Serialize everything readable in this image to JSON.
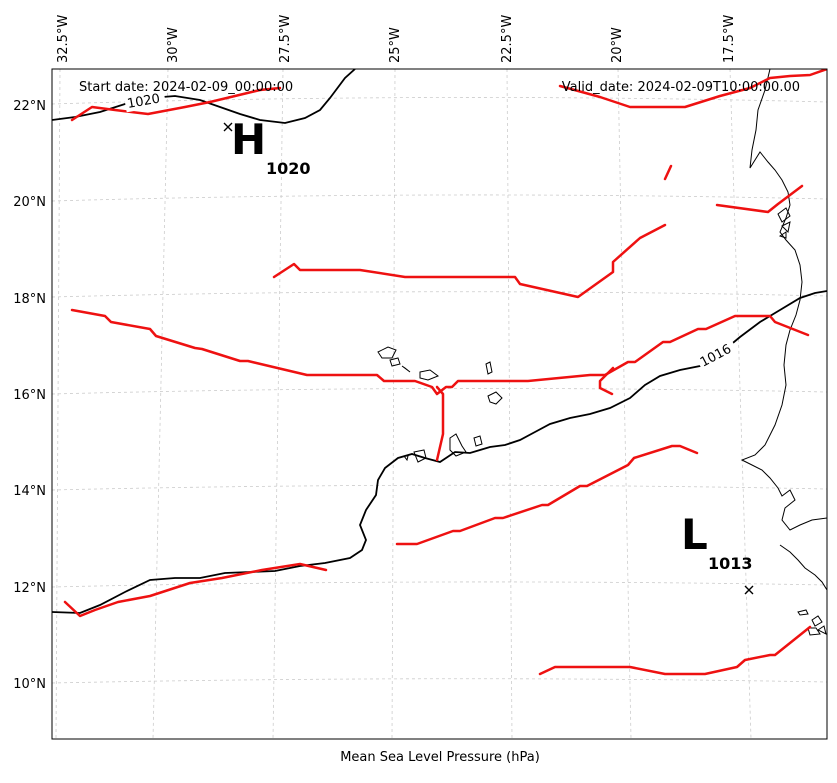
{
  "map": {
    "header": {
      "start_date": "Start date: 2024-02-09_00:00:00",
      "valid_date": "Valid_date: 2024-02-09T10:00:00.00"
    },
    "xlabel": "Mean Sea Level Pressure (hPa)",
    "lon_ticks": [
      "32.5°W",
      "30°W",
      "27.5°W",
      "25°W",
      "22.5°W",
      "20°W",
      "17.5°W"
    ],
    "lat_ticks": [
      "22°N",
      "20°N",
      "18°N",
      "16°N",
      "14°N",
      "12°N",
      "10°N"
    ],
    "high": {
      "letter": "H",
      "value": "1020"
    },
    "low": {
      "letter": "L",
      "value": "1013"
    },
    "isobar_labels": [
      "1020",
      "1016"
    ],
    "colors": {
      "isobar": "#000000",
      "fronts": "#ee1111",
      "coast": "#000000",
      "grid": "#cccccc"
    }
  }
}
